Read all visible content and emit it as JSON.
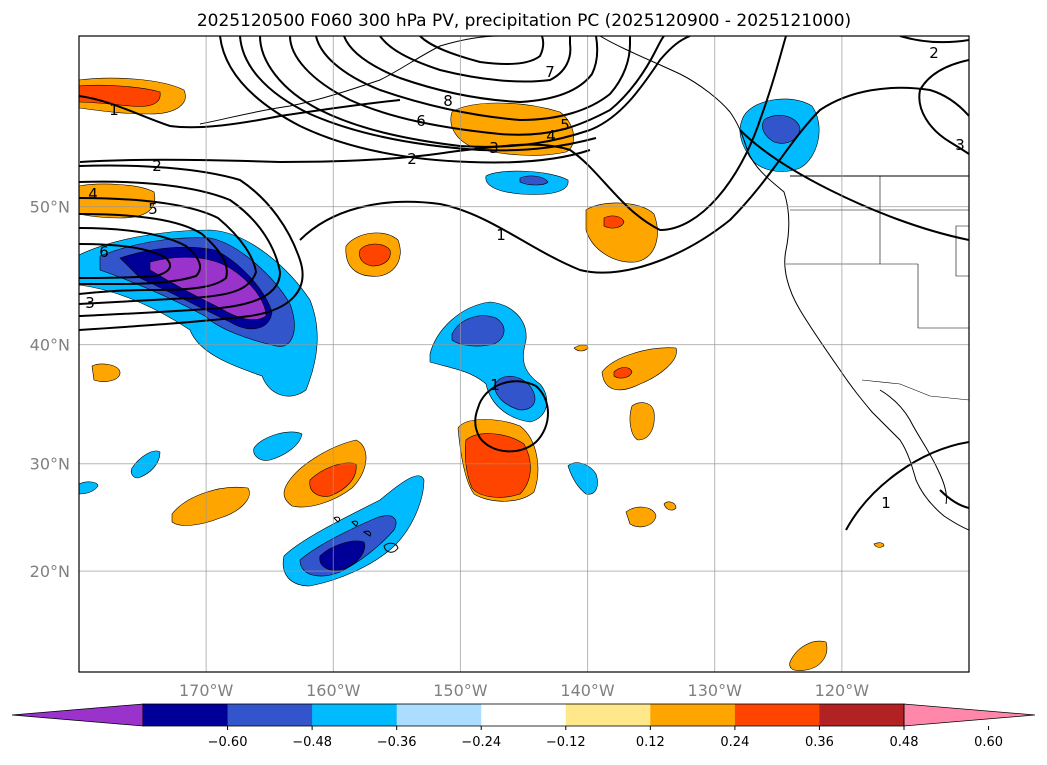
{
  "title": "2025120500 F060 300 hPa PV, precipitation PC (2025120900 - 2025121000)",
  "lon_labels": [
    "170°W",
    "160°W",
    "150°W",
    "140°W",
    "130°W",
    "120°W"
  ],
  "lat_labels": [
    "50°N",
    "40°N",
    "30°N",
    "20°N"
  ],
  "colorbar": {
    "ticks": [
      "−0.60",
      "−0.48",
      "−0.36",
      "−0.24",
      "−0.12",
      "0.12",
      "0.24",
      "0.36",
      "0.48",
      "0.60"
    ],
    "colors": [
      "#9933cc",
      "#000099",
      "#3355cc",
      "#00bbff",
      "#aaddff",
      "#ffffff",
      "#ffe88a",
      "#ffa500",
      "#ff4400",
      "#b22222",
      "#ff88aa"
    ]
  },
  "map_extent": {
    "lon": [
      -180,
      -110
    ],
    "lat": [
      10,
      60
    ]
  },
  "grid_lons": [
    -170,
    -160,
    -150,
    -140,
    -130,
    -120
  ],
  "grid_lats": [
    50,
    40,
    30,
    20
  ],
  "pv_contour_labels": [
    "1",
    "2",
    "4",
    "5",
    "6",
    "3",
    "7",
    "8",
    "6",
    "2",
    "3",
    "4",
    "5",
    "1",
    "2",
    "3",
    "1",
    "1"
  ]
}
